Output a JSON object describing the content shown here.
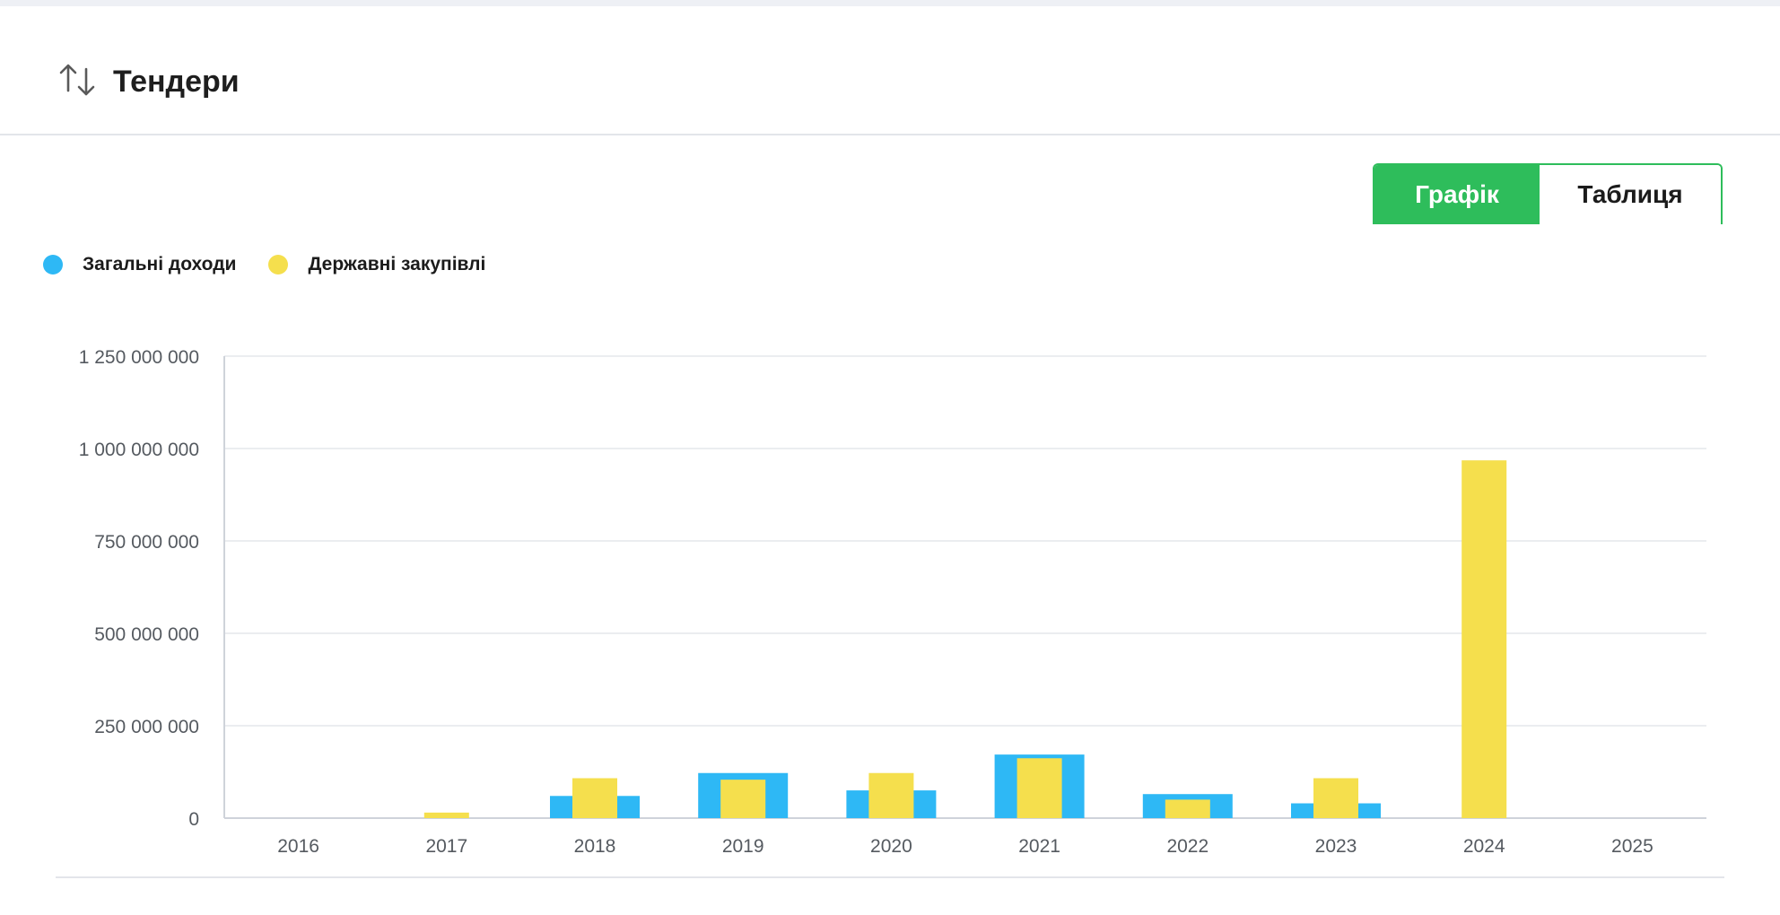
{
  "header": {
    "title": "Тендери",
    "icon": "sort-arrows-icon"
  },
  "view_toggle": {
    "chart_label": "Графік",
    "table_label": "Таблиця",
    "active": "chart_label",
    "active_color": "#2ebd5b"
  },
  "chart_data": {
    "type": "bar",
    "categories": [
      "2016",
      "2017",
      "2018",
      "2019",
      "2020",
      "2021",
      "2022",
      "2023",
      "2024",
      "2025"
    ],
    "series": [
      {
        "name": "Загальні доходи",
        "color": "#2eb8f5",
        "values": [
          0,
          0,
          60000000,
          122000000,
          75000000,
          172000000,
          65000000,
          40000000,
          0,
          0
        ]
      },
      {
        "name": "Державні закупівлі",
        "color": "#f5df4d",
        "values": [
          0,
          15000000,
          108000000,
          104000000,
          122000000,
          162000000,
          50000000,
          108000000,
          968000000,
          0
        ]
      }
    ],
    "y_ticks": [
      "0",
      "250 000 000",
      "500 000 000",
      "750 000 000",
      "1 000 000 000",
      "1 250 000 000"
    ],
    "y_tick_values": [
      0,
      250000000,
      500000000,
      750000000,
      1000000000,
      1250000000
    ],
    "ylim": [
      0,
      1250000000
    ],
    "grid": true,
    "legend_position": "top-left"
  }
}
